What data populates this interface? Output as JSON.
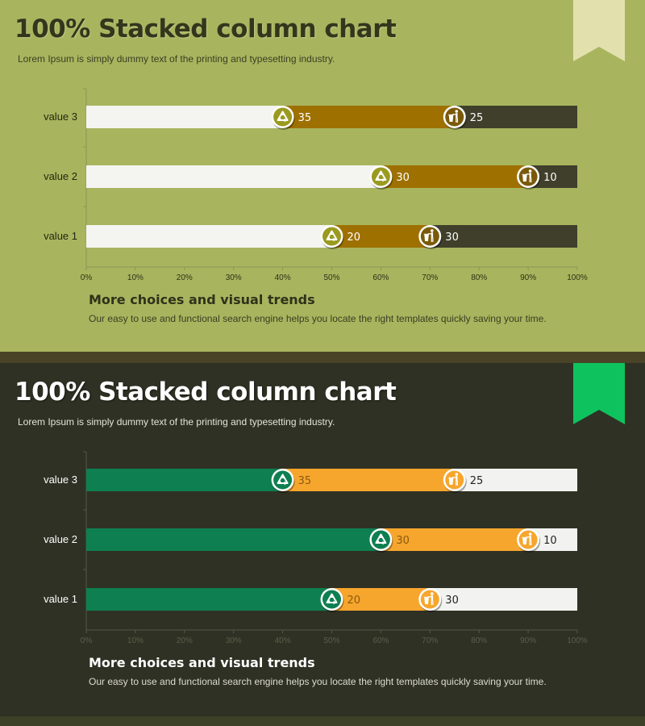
{
  "panels": [
    {
      "title": "100% Stacked column chart",
      "subtitle": "Lorem Ipsum is simply dummy text of the printing and typesetting industry.",
      "footer_title": "More choices and visual trends",
      "footer_text": "Our easy to use and functional search engine helps you locate the right templates quickly  saving your time.",
      "colors": {
        "seg1": "#f4f4f0",
        "seg2": "#9e7000",
        "seg3": "#3f3f2b",
        "axis": "#8a9556",
        "tick_text": "#2e3118",
        "category_text": "#25270f",
        "ribbon": "#e2e1ae",
        "label_on_seg2": "#ffffff",
        "label_on_seg3": "#ffffff",
        "icon_recycle_fill": "#9a9a20",
        "icon_trash_fill": "#7a5a0a"
      }
    },
    {
      "title": "100% Stacked column chart",
      "subtitle": "Lorem Ipsum is simply dummy text of the printing and typesetting industry.",
      "footer_title": "More choices and visual trends",
      "footer_text": "Our easy to use and functional search engine helps you locate the right templates quickly  saving your time.",
      "colors": {
        "seg1": "#0e7f50",
        "seg2": "#f7a62d",
        "seg3": "#f2f2f0",
        "axis": "#565846",
        "tick_text": "#5c5e4b",
        "category_text": "#ffffff",
        "ribbon": "#0ec25e",
        "label_on_seg2": "#8a5a10",
        "label_on_seg3": "#222222",
        "icon_recycle_fill": "#0e7f50",
        "icon_trash_fill": "#f7a62d"
      }
    }
  ],
  "chart_data": [
    {
      "type": "bar",
      "stacked": "percent",
      "orientation": "horizontal",
      "categories": [
        "value 1",
        "value 2",
        "value 3"
      ],
      "series": [
        {
          "values": [
            50,
            60,
            40
          ]
        },
        {
          "values": [
            20,
            30,
            35
          ]
        },
        {
          "values": [
            30,
            10,
            25
          ]
        }
      ],
      "data_labels": [
        {
          "values": [
            20,
            30,
            35
          ],
          "icon": "recycle-icon"
        },
        {
          "values": [
            30,
            10,
            25
          ],
          "icon": "trash-person-icon"
        }
      ],
      "x_ticks": [
        "0%",
        "10%",
        "20%",
        "30%",
        "40%",
        "50%",
        "60%",
        "70%",
        "80%",
        "90%",
        "100%"
      ],
      "xlim": [
        0,
        100
      ]
    },
    {
      "type": "bar",
      "stacked": "percent",
      "orientation": "horizontal",
      "categories": [
        "value 1",
        "value 2",
        "value 3"
      ],
      "series": [
        {
          "values": [
            50,
            60,
            40
          ]
        },
        {
          "values": [
            20,
            30,
            35
          ]
        },
        {
          "values": [
            30,
            10,
            25
          ]
        }
      ],
      "data_labels": [
        {
          "values": [
            20,
            30,
            35
          ],
          "icon": "recycle-icon"
        },
        {
          "values": [
            30,
            10,
            25
          ],
          "icon": "trash-person-icon"
        }
      ],
      "x_ticks": [
        "0%",
        "10%",
        "20%",
        "30%",
        "40%",
        "50%",
        "60%",
        "70%",
        "80%",
        "90%",
        "100%"
      ],
      "xlim": [
        0,
        100
      ]
    }
  ]
}
